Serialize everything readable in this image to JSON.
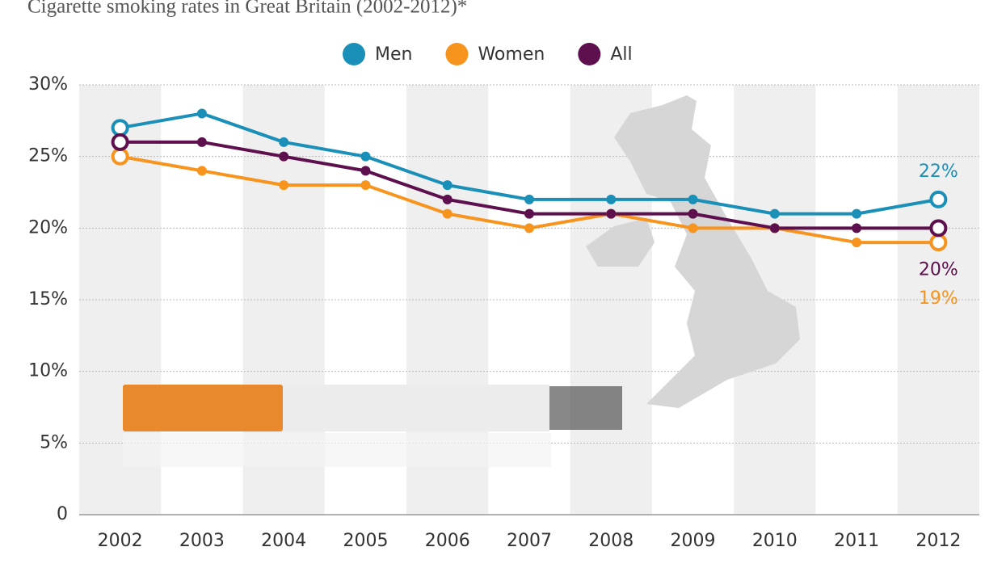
{
  "chart_data": {
    "type": "line",
    "title": "Cigarette smoking rates in Great Britain (2002-2012)*",
    "categories": [
      "2002",
      "2003",
      "2004",
      "2005",
      "2006",
      "2007",
      "2008",
      "2009",
      "2010",
      "2011",
      "2012"
    ],
    "series": [
      {
        "name": "Men",
        "color": "#1a8fb8",
        "values": [
          27,
          28,
          26,
          25,
          23,
          22,
          22,
          22,
          21,
          21,
          22
        ],
        "value_labels": [
          null,
          null,
          null,
          null,
          null,
          null,
          null,
          null,
          null,
          null,
          "22%"
        ]
      },
      {
        "name": "Women",
        "color": "#f7941d",
        "values": [
          25,
          24,
          23,
          23,
          21,
          20,
          21,
          20,
          20,
          19,
          19
        ],
        "value_labels": [
          null,
          null,
          null,
          null,
          null,
          null,
          null,
          null,
          null,
          null,
          "19%"
        ]
      },
      {
        "name": "All",
        "color": "#5e0f4d",
        "values": [
          26,
          26,
          25,
          24,
          22,
          21,
          21,
          21,
          20,
          20,
          20
        ],
        "value_labels": [
          null,
          null,
          null,
          null,
          null,
          null,
          null,
          null,
          null,
          null,
          "20%"
        ]
      }
    ],
    "ylim": [
      0,
      30
    ],
    "yticks": [
      0,
      {
        "value": 5,
        "label": "5%"
      },
      {
        "value": 10,
        "label": "10%"
      },
      {
        "value": 15,
        "label": "15%"
      },
      {
        "value": 20,
        "label": "20%"
      },
      {
        "value": 25,
        "label": "25%"
      },
      {
        "value": 30,
        "label": "30%"
      }
    ],
    "grid": true
  }
}
